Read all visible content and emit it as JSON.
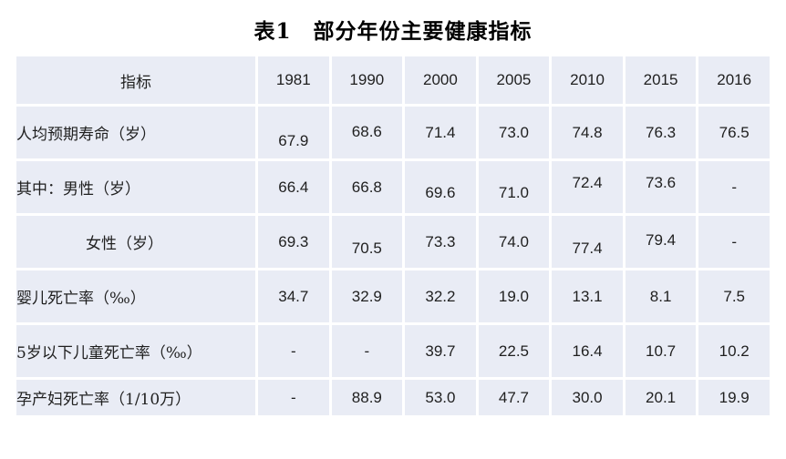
{
  "page": {
    "title": "表1　部分年份主要健康指标"
  },
  "table": {
    "columns": [
      "指标",
      "1981",
      "1990",
      "2000",
      "2005",
      "2010",
      "2015",
      "2016"
    ],
    "rows": [
      {
        "label": "人均预期寿命（岁）",
        "indent": false,
        "short": false,
        "values": [
          "67.9",
          "68.6",
          "71.4",
          "73.0",
          "74.8",
          "76.3",
          "76.5"
        ],
        "dy": [
          9,
          -1,
          0,
          0,
          0,
          0,
          0
        ]
      },
      {
        "label": "其中：男性（岁）",
        "indent": false,
        "short": false,
        "values": [
          "66.4",
          "66.8",
          "69.6",
          "71.0",
          "72.4",
          "73.6",
          "-"
        ],
        "dy": [
          0,
          0,
          6,
          6,
          -5,
          -5,
          0
        ]
      },
      {
        "label": "女性（岁）",
        "indent": true,
        "short": false,
        "values": [
          "69.3",
          "70.5",
          "73.3",
          "74.0",
          "77.4",
          "79.4",
          "-"
        ],
        "dy": [
          0,
          7,
          0,
          0,
          7,
          -2,
          0
        ]
      },
      {
        "label": "婴儿死亡率（‰）",
        "indent": false,
        "short": false,
        "values": [
          "34.7",
          "32.9",
          "32.2",
          "19.0",
          "13.1",
          "8.1",
          "7.5"
        ],
        "dy": [
          0,
          0,
          0,
          0,
          0,
          0,
          0
        ]
      },
      {
        "label": "5岁以下儿童死亡率（‰）",
        "indent": false,
        "short": false,
        "values": [
          "-",
          "-",
          "39.7",
          "22.5",
          "16.4",
          "10.7",
          "10.2"
        ],
        "dy": [
          0,
          0,
          0,
          0,
          0,
          0,
          0
        ]
      },
      {
        "label": "孕产妇死亡率（1/10万）",
        "indent": false,
        "short": true,
        "values": [
          "-",
          "88.9",
          "53.0",
          "47.7",
          "30.0",
          "20.1",
          "19.9"
        ],
        "dy": [
          0,
          0,
          0,
          0,
          0,
          0,
          0
        ]
      }
    ],
    "colors": {
      "cell_bg": "#E9ECF5",
      "gap": "#FFFFFF",
      "text": "#1F1F1F"
    }
  }
}
